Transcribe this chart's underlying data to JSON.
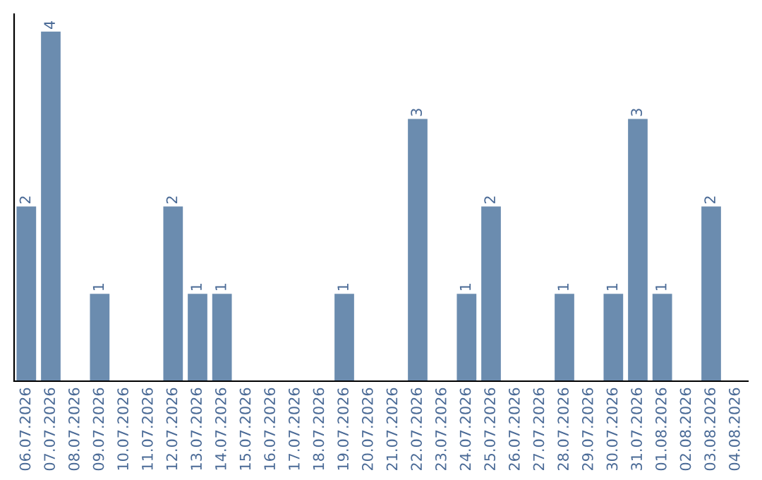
{
  "chart_data": {
    "type": "bar",
    "categories": [
      "06.07.2026",
      "07.07.2026",
      "08.07.2026",
      "09.07.2026",
      "10.07.2026",
      "11.07.2026",
      "12.07.2026",
      "13.07.2026",
      "14.07.2026",
      "15.07.2026",
      "16.07.2026",
      "17.07.2026",
      "18.07.2026",
      "19.07.2026",
      "20.07.2026",
      "21.07.2026",
      "22.07.2026",
      "23.07.2026",
      "24.07.2026",
      "25.07.2026",
      "26.07.2026",
      "27.07.2026",
      "28.07.2026",
      "29.07.2026",
      "30.07.2026",
      "31.07.2026",
      "01.08.2026",
      "02.08.2026",
      "03.08.2026",
      "04.08.2026"
    ],
    "values": [
      2,
      4,
      0,
      1,
      0,
      0,
      2,
      1,
      1,
      0,
      0,
      0,
      0,
      1,
      0,
      0,
      3,
      0,
      1,
      2,
      0,
      0,
      1,
      0,
      1,
      3,
      1,
      0,
      2,
      0
    ],
    "value_labels": [
      "2",
      "4",
      null,
      "1",
      null,
      null,
      "2",
      "1",
      "1",
      null,
      null,
      null,
      null,
      "1",
      null,
      null,
      "3",
      null,
      "1",
      "2",
      null,
      null,
      "1",
      null,
      "1",
      "3",
      "1",
      null,
      "2",
      null
    ],
    "color": "#6b8caf",
    "ylim": [
      0,
      4.2
    ],
    "tick_labels": "x",
    "grid": false,
    "legend": false
  }
}
